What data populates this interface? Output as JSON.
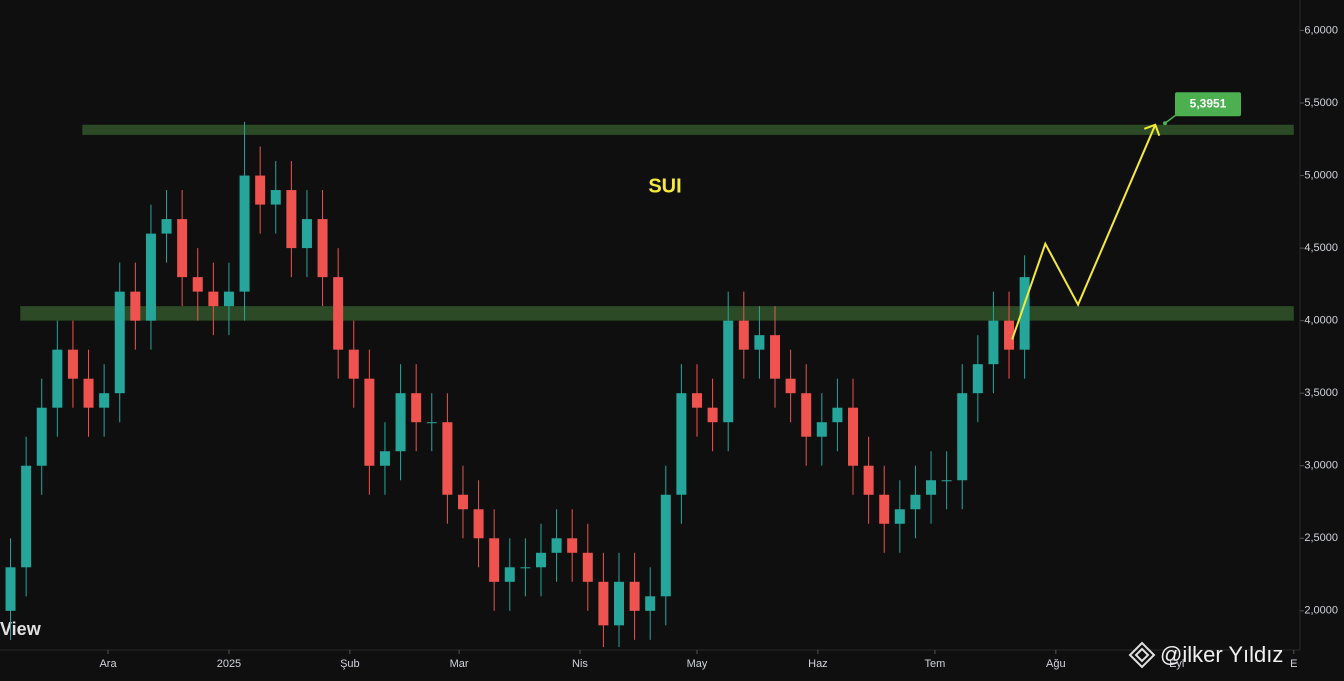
{
  "chart_data": {
    "type": "candlestick",
    "title": "SUI",
    "x": [
      -25,
      -21,
      -17,
      -13,
      -9,
      -5,
      -1,
      3,
      7,
      11,
      15,
      19,
      23,
      27,
      31,
      35,
      39,
      43,
      47,
      51,
      55,
      59,
      63,
      67,
      71,
      75,
      79,
      83,
      87,
      91,
      95,
      99,
      103,
      107,
      111,
      115,
      119,
      123,
      127,
      131,
      135,
      139,
      143,
      147,
      151,
      155,
      159,
      163,
      167,
      171,
      175,
      179,
      183,
      187,
      191,
      195,
      199,
      203,
      207,
      211,
      215,
      219,
      223,
      227,
      231,
      235
    ],
    "open": [
      2.0,
      2.3,
      3.0,
      3.4,
      3.8,
      3.6,
      3.4,
      3.5,
      4.2,
      4.0,
      4.6,
      4.7,
      4.3,
      4.2,
      4.1,
      4.2,
      5.0,
      4.8,
      4.9,
      4.5,
      4.7,
      4.3,
      3.8,
      3.6,
      3.0,
      3.1,
      3.5,
      3.3,
      3.3,
      2.8,
      2.7,
      2.5,
      2.2,
      2.3,
      2.3,
      2.4,
      2.5,
      2.4,
      2.2,
      1.9,
      2.2,
      2.0,
      2.1,
      2.8,
      3.5,
      3.4,
      3.3,
      4.0,
      3.8,
      3.9,
      3.6,
      3.5,
      3.2,
      3.3,
      3.4,
      3.0,
      2.8,
      2.6,
      2.7,
      2.8,
      2.9,
      2.9,
      3.5,
      3.7,
      4.0,
      3.8
    ],
    "high": [
      2.5,
      3.2,
      3.6,
      4.0,
      4.0,
      3.8,
      3.7,
      4.4,
      4.4,
      4.8,
      4.9,
      4.9,
      4.5,
      4.4,
      4.4,
      5.37,
      5.2,
      5.1,
      5.1,
      4.9,
      4.9,
      4.5,
      4.0,
      3.8,
      3.3,
      3.7,
      3.7,
      3.5,
      3.5,
      3.0,
      2.9,
      2.7,
      2.5,
      2.5,
      2.6,
      2.7,
      2.7,
      2.6,
      2.4,
      2.4,
      2.4,
      2.3,
      3.0,
      3.7,
      3.7,
      3.6,
      4.2,
      4.2,
      4.1,
      4.1,
      3.8,
      3.7,
      3.5,
      3.6,
      3.6,
      3.2,
      3.0,
      2.9,
      3.0,
      3.1,
      3.1,
      3.7,
      3.9,
      4.2,
      4.2,
      4.45
    ],
    "low": [
      1.8,
      2.1,
      2.8,
      3.2,
      3.4,
      3.2,
      3.2,
      3.3,
      3.8,
      3.8,
      4.4,
      4.1,
      4.0,
      3.9,
      3.9,
      4.0,
      4.6,
      4.6,
      4.3,
      4.3,
      4.1,
      3.6,
      3.4,
      2.8,
      2.8,
      2.9,
      3.1,
      3.1,
      2.6,
      2.5,
      2.3,
      2.0,
      2.0,
      2.1,
      2.1,
      2.2,
      2.2,
      2.0,
      1.75,
      1.75,
      1.8,
      1.8,
      1.9,
      2.6,
      3.2,
      3.1,
      3.1,
      3.6,
      3.6,
      3.4,
      3.3,
      3.0,
      3.0,
      3.1,
      2.8,
      2.6,
      2.4,
      2.4,
      2.5,
      2.6,
      2.7,
      2.7,
      3.3,
      3.5,
      3.6,
      3.6
    ],
    "close": [
      2.3,
      3.0,
      3.4,
      3.8,
      3.6,
      3.4,
      3.5,
      4.2,
      4.0,
      4.6,
      4.7,
      4.3,
      4.2,
      4.1,
      4.2,
      5.0,
      4.8,
      4.9,
      4.5,
      4.7,
      4.3,
      3.8,
      3.6,
      3.0,
      3.1,
      3.5,
      3.3,
      3.3,
      2.8,
      2.7,
      2.5,
      2.2,
      2.3,
      2.3,
      2.4,
      2.5,
      2.4,
      2.2,
      1.9,
      2.2,
      2.0,
      2.1,
      2.8,
      3.5,
      3.4,
      3.3,
      4.0,
      3.8,
      3.9,
      3.6,
      3.5,
      3.2,
      3.3,
      3.4,
      3.0,
      2.8,
      2.6,
      2.7,
      2.8,
      2.9,
      2.9,
      3.5,
      3.7,
      4.0,
      3.8,
      4.3
    ],
    "up_color": "#26a69a",
    "down_color": "#ef5350",
    "xlim": [
      -27.7,
      305.6
    ],
    "ylim": [
      1.73,
      6.21
    ],
    "yticks": [
      {
        "value": 2,
        "label": "2,0000"
      },
      {
        "value": 2.5,
        "label": "2,5000"
      },
      {
        "value": 3,
        "label": "3,0000"
      },
      {
        "value": 3.5,
        "label": "3,5000"
      },
      {
        "value": 4,
        "label": "4,0000"
      },
      {
        "value": 4.5,
        "label": "4,5000"
      },
      {
        "value": 5,
        "label": "5,0000"
      },
      {
        "value": 5.5,
        "label": "5,5000"
      },
      {
        "value": 6,
        "label": "6,0000"
      }
    ],
    "xticks": [
      {
        "value": 0,
        "label": "Ara"
      },
      {
        "value": 31,
        "label": "2025"
      },
      {
        "value": 62,
        "label": "Şub"
      },
      {
        "value": 90,
        "label": "Mar"
      },
      {
        "value": 121,
        "label": "Nis"
      },
      {
        "value": 151,
        "label": "May"
      },
      {
        "value": 182,
        "label": "Haz"
      },
      {
        "value": 212,
        "label": "Tem"
      },
      {
        "value": 243,
        "label": "Ağu"
      },
      {
        "value": 274,
        "label": "Eyl"
      },
      {
        "value": 304,
        "label": "E"
      }
    ],
    "zones": [
      {
        "from": 5.28,
        "to": 5.35,
        "x_start": -6.6,
        "x_end": 304
      },
      {
        "from": 4.0,
        "to": 4.1,
        "x_start": -22.5,
        "x_end": 304
      }
    ],
    "zone_color": "#2b4a25",
    "projection": {
      "color": "#f5e93a",
      "x": [
        231.8,
        240.3,
        248.7,
        268.5
      ],
      "y": [
        3.87,
        4.53,
        4.11,
        5.35
      ]
    },
    "price_label": {
      "value": 5.3951,
      "label": "5,3951",
      "color": "#4caf50"
    }
  },
  "watermarks": [
    "View",
    "@ilker Yıldız"
  ]
}
